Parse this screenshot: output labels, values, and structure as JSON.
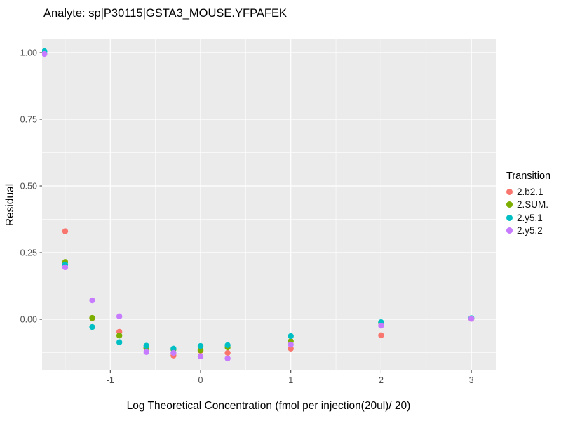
{
  "chart_data": {
    "type": "scatter",
    "title": "Analyte: sp|P30115|GSTA3_MOUSE.YFPAFEK",
    "xlabel": "Log Theoretical Concentration (fmol per injection(20ul)/ 20)",
    "ylabel": "Residual",
    "legend_title": "Transition",
    "legend_position": "right",
    "grid": true,
    "panel_bg": "#EBEBEB",
    "grid_color": "#FFFFFF",
    "tick_label_color": "#4D4D4D",
    "tick_mark_color": "#333333",
    "xlim": [
      -1.756,
      3.271
    ],
    "ylim": [
      -0.192,
      1.05
    ],
    "x_ticks": {
      "values": [
        -1,
        0,
        1,
        2,
        3
      ],
      "labels": [
        "-1",
        "0",
        "1",
        "2",
        "3"
      ]
    },
    "x_minor": [
      -1.5,
      -0.5,
      0.5,
      1.5,
      2.5
    ],
    "y_ticks": {
      "values": [
        0,
        0.25,
        0.5,
        0.75,
        1
      ],
      "labels": [
        "0.00",
        "0.25",
        "0.50",
        "0.75",
        "1.00"
      ]
    },
    "y_minor": [
      -0.125,
      0.125,
      0.375,
      0.625,
      0.875
    ],
    "point_radius": 4.2,
    "series": [
      {
        "name": "2.b2.1",
        "color": "#F8766D",
        "points": [
          [
            -1.5,
            0.33
          ],
          [
            -1.2,
            0.004
          ],
          [
            -0.9,
            -0.047
          ],
          [
            -0.6,
            -0.108
          ],
          [
            -0.3,
            -0.136
          ],
          [
            0,
            -0.118
          ],
          [
            0.3,
            -0.126
          ],
          [
            1,
            -0.11
          ],
          [
            2,
            -0.06
          ],
          [
            3,
            0.002
          ]
        ]
      },
      {
        "name": "2.SUM.",
        "color": "#7CAE00",
        "points": [
          [
            -1.5,
            0.215
          ],
          [
            -1.2,
            0.005
          ],
          [
            -0.9,
            -0.061
          ],
          [
            -0.6,
            -0.107
          ],
          [
            -0.3,
            -0.113
          ],
          [
            0,
            -0.116
          ],
          [
            0.3,
            -0.105
          ],
          [
            1,
            -0.082
          ],
          [
            2,
            -0.013
          ],
          [
            3,
            0.003
          ]
        ]
      },
      {
        "name": "2.y5.1",
        "color": "#00BFC4",
        "points": [
          [
            -1.73,
            1.005
          ],
          [
            -1.5,
            0.205
          ],
          [
            -1.2,
            -0.029
          ],
          [
            -0.9,
            -0.086
          ],
          [
            -0.6,
            -0.099
          ],
          [
            -0.3,
            -0.11
          ],
          [
            0,
            -0.1
          ],
          [
            0.3,
            -0.097
          ],
          [
            1,
            -0.063
          ],
          [
            2,
            -0.011
          ],
          [
            3,
            0.004
          ]
        ]
      },
      {
        "name": "2.y5.2",
        "color": "#C77CFF",
        "points": [
          [
            -1.73,
            0.995
          ],
          [
            -1.5,
            0.195
          ],
          [
            -1.2,
            0.071
          ],
          [
            -0.9,
            0.011
          ],
          [
            -0.6,
            -0.123
          ],
          [
            -0.3,
            -0.126
          ],
          [
            0,
            -0.139
          ],
          [
            0.3,
            -0.147
          ],
          [
            1,
            -0.095
          ],
          [
            2,
            -0.024
          ],
          [
            3,
            0.002
          ]
        ]
      }
    ]
  }
}
